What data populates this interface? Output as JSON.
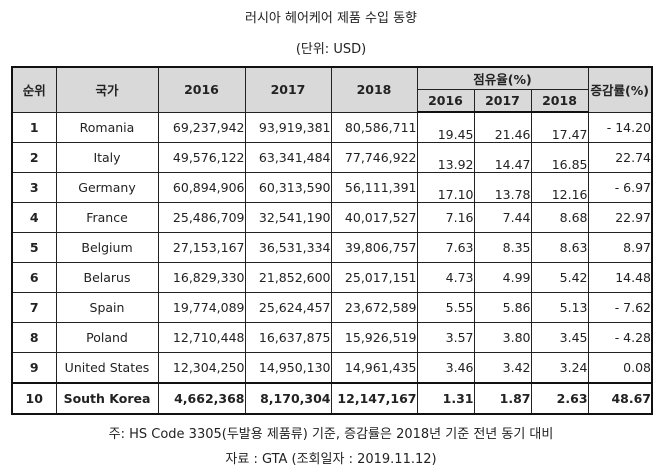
{
  "title": "러시아 헤어케어 제품 수입 동향",
  "unit": "(단위: USD)",
  "headers": {
    "rank": "순위",
    "country": "국가",
    "y2016": "2016",
    "y2017": "2017",
    "y2018": "2018",
    "share": "점유율(%)",
    "share_2016": "2016",
    "share_2017": "2017",
    "share_2018": "2018",
    "change": "증감률(%)"
  },
  "rows": [
    {
      "rank": "1",
      "country": "Romania",
      "v2016": "69,237,942",
      "v2017": "93,919,381",
      "v2018": "80,586,711",
      "s2016": "19.45",
      "s2017": "21.46",
      "s2018": "17.47",
      "change": "- 14.20"
    },
    {
      "rank": "2",
      "country": "Italy",
      "v2016": "49,576,122",
      "v2017": "63,341,484",
      "v2018": "77,746,922",
      "s2016": "13.92",
      "s2017": "14.47",
      "s2018": "16.85",
      "change": "22.74"
    },
    {
      "rank": "3",
      "country": "Germany",
      "v2016": "60,894,906",
      "v2017": "60,313,590",
      "v2018": "56,111,391",
      "s2016": "17.10",
      "s2017": "13.78",
      "s2018": "12.16",
      "change": "- 6.97"
    },
    {
      "rank": "4",
      "country": "France",
      "v2016": "25,486,709",
      "v2017": "32,541,190",
      "v2018": "40,017,527",
      "s2016": "7.16",
      "s2017": "7.44",
      "s2018": "8.68",
      "change": "22.97"
    },
    {
      "rank": "5",
      "country": "Belgium",
      "v2016": "27,153,167",
      "v2017": "36,531,334",
      "v2018": "39,806,757",
      "s2016": "7.63",
      "s2017": "8.35",
      "s2018": "8.63",
      "change": "8.97"
    },
    {
      "rank": "6",
      "country": "Belarus",
      "v2016": "16,829,330",
      "v2017": "21,852,600",
      "v2018": "25,017,151",
      "s2016": "4.73",
      "s2017": "4.99",
      "s2018": "5.42",
      "change": "14.48"
    },
    {
      "rank": "7",
      "country": "Spain",
      "v2016": "19,774,089",
      "v2017": "25,624,457",
      "v2018": "23,672,589",
      "s2016": "5.55",
      "s2017": "5.86",
      "s2018": "5.13",
      "change": "- 7.62"
    },
    {
      "rank": "8",
      "country": "Poland",
      "v2016": "12,710,448",
      "v2017": "16,637,875",
      "v2018": "15,926,519",
      "s2016": "3.57",
      "s2017": "3.80",
      "s2018": "3.45",
      "change": "- 4.28"
    },
    {
      "rank": "9",
      "country": "United States",
      "v2016": "12,304,250",
      "v2017": "14,950,130",
      "v2018": "14,961,435",
      "s2016": "3.46",
      "s2017": "3.42",
      "s2018": "3.24",
      "change": "0.08"
    },
    {
      "rank": "10",
      "country": "South Korea",
      "v2016": "4,662,368",
      "v2017": "8,170,304",
      "v2018": "12,147,167",
      "s2016": "1.31",
      "s2017": "1.87",
      "s2018": "2.63",
      "change": "48.67"
    }
  ],
  "note": "주: HS Code 3305(두발용 제품류) 기준, 증감률은 2018년 기준 전년 동기 대비",
  "source": "자료 : GTA (조회일자 : 2019.11.12)"
}
